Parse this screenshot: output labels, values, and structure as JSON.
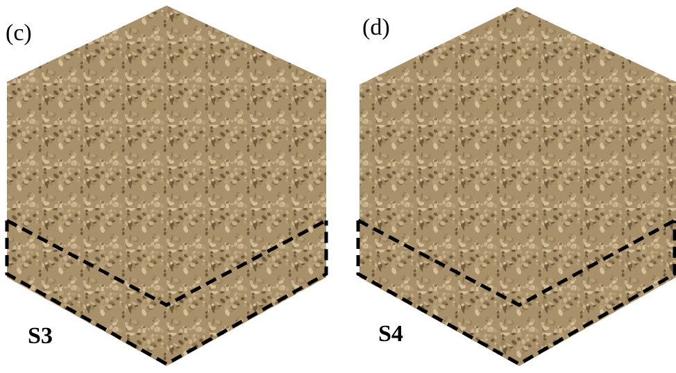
{
  "panels": [
    {
      "label": "(c)",
      "region": "S3"
    },
    {
      "label": "(d)",
      "region": "S4"
    }
  ]
}
